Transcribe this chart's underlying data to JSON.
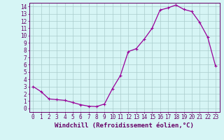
{
  "x": [
    0,
    1,
    2,
    3,
    4,
    5,
    6,
    7,
    8,
    9,
    10,
    11,
    12,
    13,
    14,
    15,
    16,
    17,
    18,
    19,
    20,
    21,
    22,
    23
  ],
  "y": [
    3.0,
    2.3,
    1.3,
    1.2,
    1.1,
    0.8,
    0.5,
    0.3,
    0.25,
    0.6,
    2.7,
    4.5,
    7.8,
    8.2,
    9.5,
    11.0,
    13.5,
    13.8,
    14.2,
    13.6,
    13.3,
    11.8,
    9.8,
    5.8
  ],
  "line_color": "#990099",
  "marker": "+",
  "markersize": 3.5,
  "linewidth": 0.9,
  "bg_color": "#d6f5f5",
  "grid_color": "#aacccc",
  "spine_color": "#660066",
  "xlabel": "Windchill (Refroidissement éolien,°C)",
  "xlabel_fontsize": 6.5,
  "tick_fontsize": 5.5,
  "xlim": [
    -0.5,
    23.5
  ],
  "ylim": [
    -0.5,
    14.5
  ],
  "yticks": [
    0,
    1,
    2,
    3,
    4,
    5,
    6,
    7,
    8,
    9,
    10,
    11,
    12,
    13,
    14
  ],
  "xticks": [
    0,
    1,
    2,
    3,
    4,
    5,
    6,
    7,
    8,
    9,
    10,
    11,
    12,
    13,
    14,
    15,
    16,
    17,
    18,
    19,
    20,
    21,
    22,
    23
  ]
}
